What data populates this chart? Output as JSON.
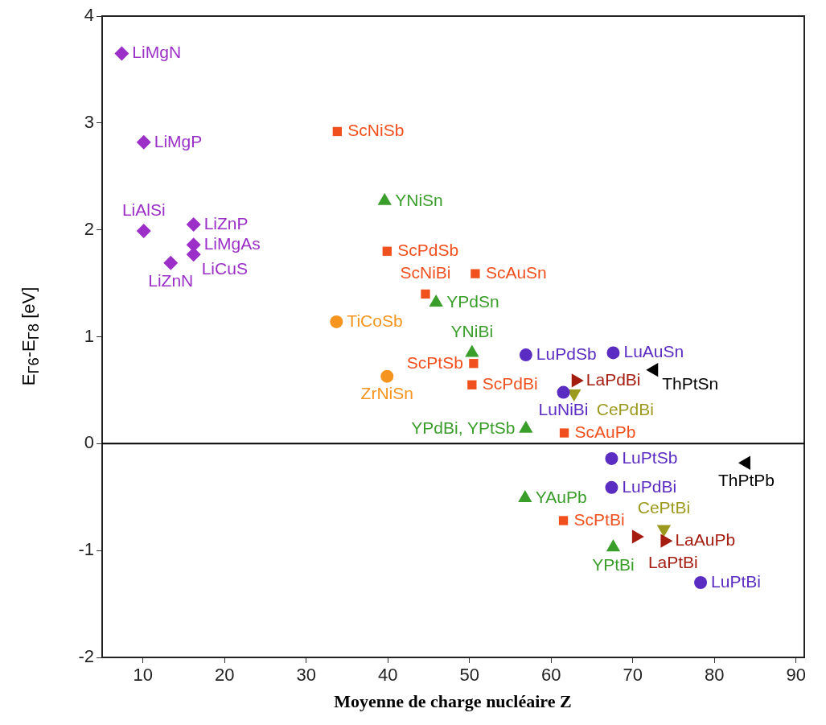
{
  "chart_data": {
    "type": "scatter",
    "xlabel": "Moyenne de charge nucléaire Z",
    "ylabel": "E$_{Γ6}$-E$_{Γ8}$ [eV]",
    "xlim": [
      5,
      91
    ],
    "xticks": [
      10,
      20,
      30,
      40,
      50,
      60,
      70,
      80,
      90
    ],
    "ylim": [
      -2,
      4
    ],
    "yticks": [
      -2,
      -1,
      0,
      1,
      2,
      3,
      4
    ],
    "grid": false,
    "legend": false,
    "ref_lines": [
      {
        "axis": "y",
        "value": 0,
        "color": "#000000"
      }
    ],
    "series": [
      {
        "color": "#9b2fc7",
        "marker": "diamond",
        "x": [
          7.4,
          10.1,
          10.1,
          16.2,
          16.2,
          16.2,
          13.4
        ],
        "values": [
          3.65,
          2.82,
          1.99,
          2.05,
          1.86,
          1.77,
          1.69
        ]
      },
      {
        "color": "#f0501e",
        "marker": "square",
        "x": [
          33.8,
          39.9,
          44.6,
          50.7,
          50.5,
          50.3,
          61.6,
          61.5
        ],
        "values": [
          2.92,
          1.8,
          1.4,
          1.59,
          0.75,
          0.55,
          0.1,
          -0.72
        ]
      },
      {
        "color": "#3a9e2a",
        "marker": "triangle",
        "x": [
          39.6,
          45.9,
          50.3,
          56.9,
          56.8,
          67.6
        ],
        "values": [
          2.27,
          1.32,
          0.85,
          0.14,
          -0.51,
          -0.97
        ]
      },
      {
        "color": "#f5941e",
        "marker": "circle",
        "x": [
          33.7,
          39.9
        ],
        "values": [
          1.14,
          0.63
        ]
      },
      {
        "color": "#5b2cc2",
        "marker": "circle",
        "x": [
          56.9,
          67.6,
          61.5,
          67.4,
          67.4,
          78.3
        ],
        "values": [
          0.83,
          0.85,
          0.48,
          -0.14,
          -0.41,
          -1.3
        ]
      },
      {
        "color": "#a51c10",
        "marker": "triangle-right",
        "x": [
          63.0,
          70.4,
          73.9
        ],
        "values": [
          0.59,
          -0.87,
          -0.91
        ]
      },
      {
        "color": "#9c9a1e",
        "marker": "triangle-down",
        "x": [
          62.8,
          73.8
        ],
        "values": [
          0.47,
          -0.8
        ]
      },
      {
        "color": "#000000",
        "marker": "triangle-left",
        "x": [
          72.6,
          83.9
        ],
        "values": [
          0.69,
          -0.18
        ]
      }
    ],
    "annotations": [
      {
        "text": "LiMgN",
        "x": 7.4,
        "y": 3.65
      },
      {
        "text": "LiMgP",
        "x": 10.1,
        "y": 2.82
      },
      {
        "text": "LiAlSi",
        "x": 10.1,
        "y": 1.99
      },
      {
        "text": "LiZnP",
        "x": 16.2,
        "y": 2.05
      },
      {
        "text": "LiMgAs",
        "x": 16.2,
        "y": 1.86
      },
      {
        "text": "LiCuS",
        "x": 16.2,
        "y": 1.77
      },
      {
        "text": "LiZnN",
        "x": 13.4,
        "y": 1.69
      },
      {
        "text": "ScNiSb",
        "x": 33.8,
        "y": 2.92
      },
      {
        "text": "ScPdSb",
        "x": 39.9,
        "y": 1.8
      },
      {
        "text": "ScNiBi",
        "x": 44.6,
        "y": 1.4
      },
      {
        "text": "ScAuSn",
        "x": 50.7,
        "y": 1.59
      },
      {
        "text": "ScPtSb",
        "x": 50.5,
        "y": 0.75
      },
      {
        "text": "ScPdBi",
        "x": 50.3,
        "y": 0.55
      },
      {
        "text": "ScAuPb",
        "x": 61.6,
        "y": 0.1
      },
      {
        "text": "ScPtBi",
        "x": 61.5,
        "y": -0.72
      },
      {
        "text": "YNiSn",
        "x": 39.6,
        "y": 2.27
      },
      {
        "text": "YPdSn",
        "x": 45.9,
        "y": 1.32
      },
      {
        "text": "YNiBi",
        "x": 50.3,
        "y": 0.85
      },
      {
        "text": "YPdBi, YPtSb",
        "x": 56.9,
        "y": 0.14
      },
      {
        "text": "YAuPb",
        "x": 56.8,
        "y": -0.51
      },
      {
        "text": "YPtBi",
        "x": 67.6,
        "y": -0.97
      },
      {
        "text": "TiCoSb",
        "x": 33.7,
        "y": 1.14
      },
      {
        "text": "ZrNiSn",
        "x": 39.9,
        "y": 0.63
      },
      {
        "text": "LuPdSb",
        "x": 56.9,
        "y": 0.83
      },
      {
        "text": "LuAuSn",
        "x": 67.6,
        "y": 0.85
      },
      {
        "text": "LuNiBi",
        "x": 61.5,
        "y": 0.48
      },
      {
        "text": "LuPtSb",
        "x": 67.4,
        "y": -0.14
      },
      {
        "text": "LuPdBi",
        "x": 67.4,
        "y": -0.41
      },
      {
        "text": "LuPtBi",
        "x": 78.3,
        "y": -1.3
      },
      {
        "text": "LaPdBi",
        "x": 63.0,
        "y": 0.59
      },
      {
        "text": "LaPtBi",
        "x": 70.4,
        "y": -0.87
      },
      {
        "text": "LaAuPb",
        "x": 73.9,
        "y": -0.91
      },
      {
        "text": "CePdBi",
        "x": 62.8,
        "y": 0.47
      },
      {
        "text": "CePtBi",
        "x": 73.8,
        "y": -0.8
      },
      {
        "text": "ThPtSn",
        "x": 72.6,
        "y": 0.69
      },
      {
        "text": "ThPtPb",
        "x": 83.9,
        "y": -0.18
      }
    ]
  }
}
